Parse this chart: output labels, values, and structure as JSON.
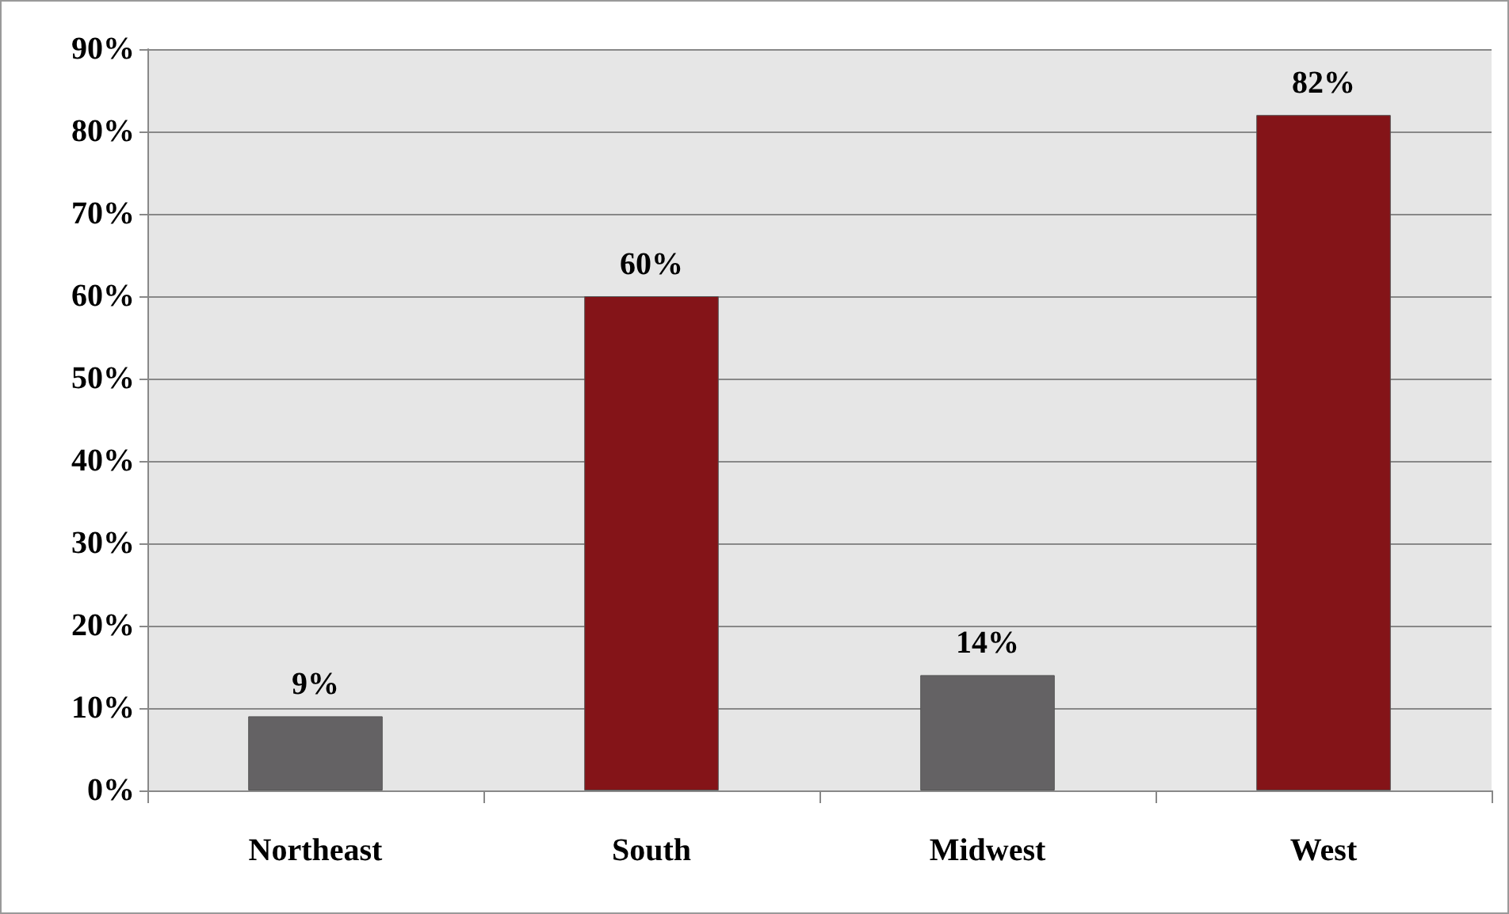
{
  "chart_data": {
    "type": "bar",
    "categories": [
      "Northeast",
      "South",
      "Midwest",
      "West"
    ],
    "values": [
      9,
      60,
      14,
      82
    ],
    "colors": [
      "#646264",
      "#841418",
      "#646264",
      "#841418"
    ],
    "value_labels": [
      "9%",
      "60%",
      "14%",
      "82%"
    ],
    "ylim": [
      0,
      90
    ],
    "yticks": [
      {
        "value": 0,
        "label": "0%"
      },
      {
        "value": 10,
        "label": "10%"
      },
      {
        "value": 20,
        "label": "20%"
      },
      {
        "value": 30,
        "label": "30%"
      },
      {
        "value": 40,
        "label": "40%"
      },
      {
        "value": 50,
        "label": "50%"
      },
      {
        "value": 60,
        "label": "60%"
      },
      {
        "value": 70,
        "label": "70%"
      },
      {
        "value": 80,
        "label": "80%"
      },
      {
        "value": 90,
        "label": "90%"
      }
    ],
    "grid": "y"
  }
}
